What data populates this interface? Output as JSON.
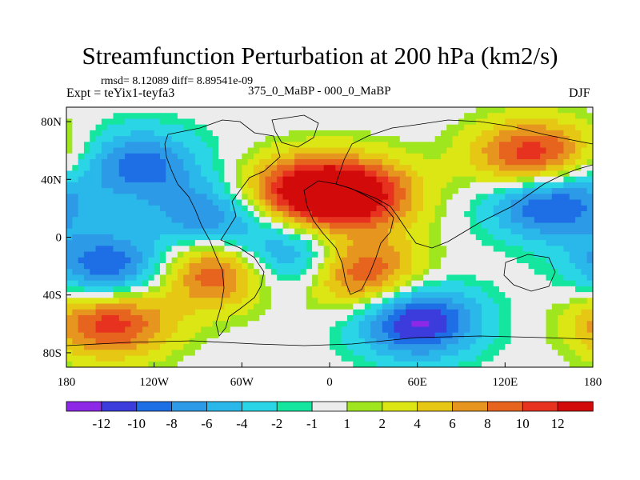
{
  "chart_data": {
    "type": "heatmap",
    "title": "Streamfunction Perturbation at 200 hPa (km2/s)",
    "subtitle": "rmsd= 8.12089 diff= 8.89541e-09",
    "left_label": "Expt = teYix1-teyfa3",
    "center_label": "375_0_MaBP - 000_0_MaBP",
    "right_label": "DJF",
    "x_range": [
      -180,
      180
    ],
    "y_range": [
      -90,
      90
    ],
    "x_ticks": [
      {
        "value": -180,
        "label": "180"
      },
      {
        "value": -120,
        "label": "120W"
      },
      {
        "value": -60,
        "label": "60W"
      },
      {
        "value": 0,
        "label": "0"
      },
      {
        "value": 60,
        "label": "60E"
      },
      {
        "value": 120,
        "label": "120E"
      },
      {
        "value": 180,
        "label": "180"
      }
    ],
    "y_ticks": [
      {
        "value": 80,
        "label": "80N"
      },
      {
        "value": 40,
        "label": "40N"
      },
      {
        "value": 0,
        "label": "0"
      },
      {
        "value": -40,
        "label": "40S"
      },
      {
        "value": -80,
        "label": "80S"
      }
    ],
    "colorbar": {
      "levels": [
        -12,
        -10,
        -8,
        -6,
        -4,
        -2,
        -1,
        1,
        2,
        4,
        6,
        8,
        10,
        12
      ],
      "labels": [
        "-12",
        "-10",
        "-8",
        "-6",
        "-4",
        "-2",
        "-1",
        "1",
        "2",
        "4",
        "6",
        "8",
        "10",
        "12"
      ],
      "colors": [
        "#8c28e6",
        "#3c3cdc",
        "#1e6ee6",
        "#2c9ae6",
        "#2ab8ea",
        "#2ad6e6",
        "#14e6a0",
        "#ececec",
        "#a0e61e",
        "#dce614",
        "#e6c814",
        "#e6961e",
        "#e6641e",
        "#e6321e",
        "#d20a0a"
      ]
    },
    "features": [
      {
        "name": "south-pacific-low",
        "lon": -150,
        "lat": -22,
        "value": -11
      },
      {
        "name": "north-pacific-low",
        "lon": -130,
        "lat": 50,
        "value": -9
      },
      {
        "name": "north-atlantic-high",
        "lon": -20,
        "lat": 30,
        "value": 13
      },
      {
        "name": "asia-high",
        "lon": 20,
        "lat": 30,
        "value": 12
      },
      {
        "name": "south-america-high",
        "lon": -75,
        "lat": -22,
        "value": 13
      },
      {
        "name": "southern-ocean-high",
        "lon": -150,
        "lat": -58,
        "value": 12
      },
      {
        "name": "southern-ocean-low",
        "lon": 60,
        "lat": -58,
        "value": -13
      },
      {
        "name": "caribbean-low",
        "lon": -80,
        "lat": 12,
        "value": -9
      },
      {
        "name": "south-atlantic-low",
        "lon": -30,
        "lat": -15,
        "value": -11
      },
      {
        "name": "west-pacific-high",
        "lon": 140,
        "lat": 55,
        "value": 13
      },
      {
        "name": "indian-ocean-high",
        "lon": 20,
        "lat": -25,
        "value": 12
      },
      {
        "name": "north-pacific-east-low",
        "lon": 150,
        "lat": 25,
        "value": -12
      }
    ]
  }
}
